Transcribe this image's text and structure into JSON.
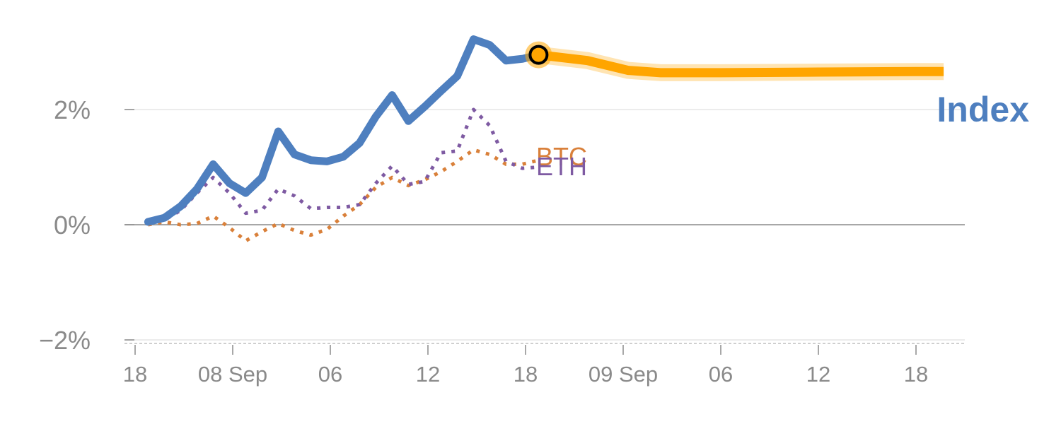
{
  "chart_data": {
    "type": "line",
    "x_tick_labels": [
      "18",
      "08 Sep",
      "06",
      "12",
      "18",
      "09 Sep",
      "06",
      "12",
      "18"
    ],
    "y_tick_labels": [
      "2%",
      "0%",
      "−2%"
    ],
    "y_ticks": [
      2,
      0,
      -2
    ],
    "ylim": [
      -2.05,
      3.9
    ],
    "x_unit": "hours",
    "xlim": [
      -0.5,
      50.5
    ],
    "x_tick_values": [
      0,
      6,
      12,
      18,
      24,
      30,
      36,
      42,
      48
    ],
    "series": [
      {
        "name": "Index",
        "color": "#4e7fbf",
        "style": "solid",
        "x": [
          0.8,
          1.8,
          2.8,
          3.8,
          4.8,
          5.8,
          6.8,
          7.8,
          8.8,
          9.8,
          10.8,
          11.8,
          12.8,
          13.8,
          14.8,
          15.8,
          16.8,
          17.8,
          18.8,
          19.8,
          20.8,
          21.8,
          22.8,
          23.8,
          24.8
        ],
        "values": [
          0.05,
          0.12,
          0.32,
          0.62,
          1.05,
          0.72,
          0.55,
          0.82,
          1.62,
          1.22,
          1.12,
          1.1,
          1.18,
          1.42,
          1.88,
          2.25,
          1.8,
          2.05,
          2.32,
          2.58,
          3.22,
          3.12,
          2.85,
          2.88,
          2.95
        ]
      },
      {
        "name": "BTC",
        "color": "#d9803a",
        "style": "dotted",
        "x": [
          0.8,
          1.8,
          2.8,
          3.8,
          4.8,
          5.8,
          6.8,
          7.8,
          8.8,
          9.8,
          10.8,
          11.8,
          12.8,
          13.8,
          14.8,
          15.8,
          16.8,
          17.8,
          18.8,
          19.8,
          20.8,
          21.8,
          22.8,
          23.8,
          24.8
        ],
        "values": [
          0.0,
          0.05,
          0.0,
          0.02,
          0.15,
          -0.05,
          -0.28,
          -0.12,
          0.02,
          -0.1,
          -0.18,
          -0.08,
          0.15,
          0.35,
          0.65,
          0.82,
          0.68,
          0.78,
          0.92,
          1.1,
          1.3,
          1.22,
          1.05,
          1.05,
          1.12
        ]
      },
      {
        "name": "ETH",
        "color": "#7e5aa2",
        "style": "dotted",
        "x": [
          0.8,
          1.8,
          2.8,
          3.8,
          4.8,
          5.8,
          6.8,
          7.8,
          8.8,
          9.8,
          10.8,
          11.8,
          12.8,
          13.8,
          14.8,
          15.8,
          16.8,
          17.8,
          18.8,
          19.8,
          20.8,
          21.8,
          22.8,
          23.8,
          24.8
        ],
        "values": [
          0.05,
          0.08,
          0.25,
          0.55,
          0.82,
          0.55,
          0.2,
          0.25,
          0.62,
          0.5,
          0.28,
          0.3,
          0.3,
          0.35,
          0.72,
          1.02,
          0.7,
          0.75,
          1.25,
          1.28,
          2.0,
          1.72,
          1.1,
          0.98,
          1.0
        ]
      }
    ],
    "forecast": {
      "series": "Index",
      "color": "#ffa500",
      "x": [
        24.8,
        27.8,
        30.3,
        32.3,
        36.0,
        42.0,
        48.0,
        49.7
      ],
      "values": [
        2.95,
        2.85,
        2.68,
        2.64,
        2.64,
        2.65,
        2.66,
        2.66
      ]
    },
    "marker": {
      "x": 24.8,
      "value": 2.95
    },
    "labels": {
      "index": "Index",
      "btc": "BTC",
      "eth": "ETH"
    },
    "grid": true,
    "legend": "none"
  }
}
